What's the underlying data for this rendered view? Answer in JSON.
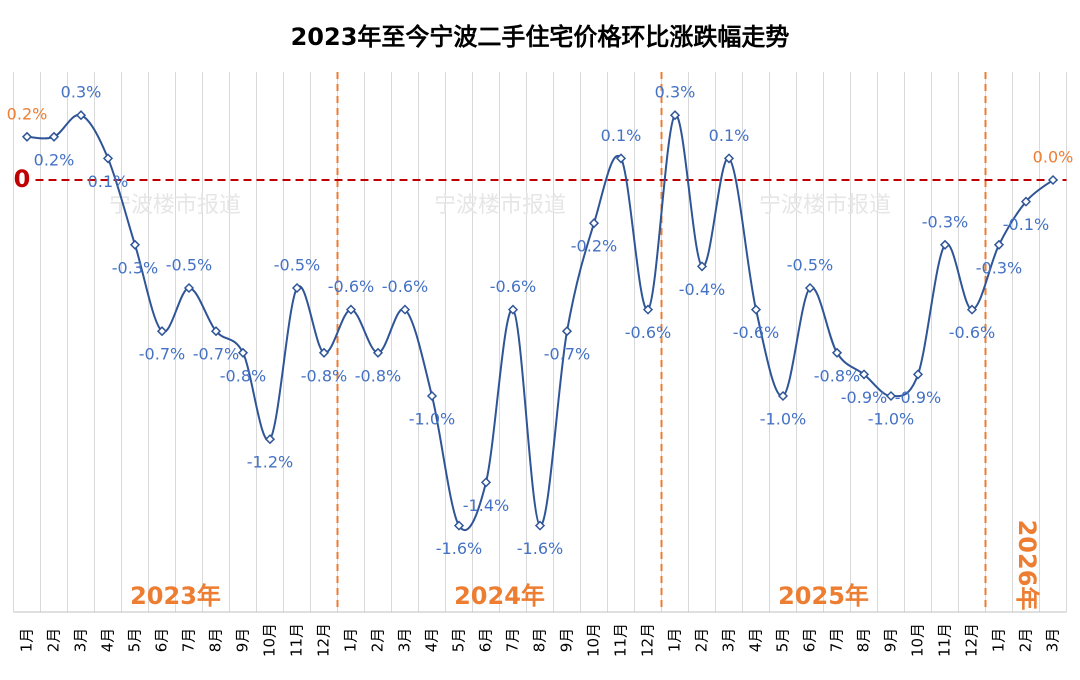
{
  "chart_data": {
    "type": "line",
    "title": "2023年至今宁波二手住宅价格环比涨跌幅走势",
    "categories": [
      "1月",
      "2月",
      "3月",
      "4月",
      "5月",
      "6月",
      "7月",
      "8月",
      "9月",
      "10月",
      "11月",
      "12月",
      "1月",
      "2月",
      "3月",
      "4月",
      "5月",
      "6月",
      "7月",
      "8月",
      "9月",
      "10月",
      "11月",
      "12月",
      "1月",
      "2月",
      "3月",
      "4月",
      "5月",
      "6月",
      "7月",
      "8月",
      "9月",
      "10月",
      "11月",
      "12月",
      "1月",
      "2月",
      "3月"
    ],
    "series": [
      {
        "name": "环比涨跌幅",
        "color": "#2f5597",
        "values": [
          0.2,
          0.2,
          0.3,
          0.1,
          -0.3,
          -0.7,
          -0.5,
          -0.7,
          -0.8,
          -1.2,
          -0.5,
          -0.8,
          -0.6,
          -0.8,
          -0.6,
          -1.0,
          -1.6,
          -1.4,
          -0.6,
          -1.6,
          -0.7,
          -0.2,
          0.1,
          -0.6,
          0.3,
          -0.4,
          0.1,
          -0.6,
          -1.0,
          -0.5,
          -0.8,
          -0.9,
          -1.0,
          -0.9,
          -0.3,
          -0.6,
          -0.3,
          -0.1,
          0.0
        ],
        "value_labels": [
          "0.2%",
          "0.2%",
          "0.3%",
          "0.1%",
          "-0.3%",
          "-0.7%",
          "-0.5%",
          "-0.7%",
          "-0.8%",
          "-1.2%",
          "-0.5%",
          "-0.8%",
          "-0.6%",
          "-0.8%",
          "-0.6%",
          "-1.0%",
          "-1.6%",
          "-1.4%",
          "-0.6%",
          "-1.6%",
          "-0.7%",
          "-0.2%",
          "0.1%",
          "-0.6%",
          "0.3%",
          "-0.4%",
          "0.1%",
          "-0.6%",
          "-1.0%",
          "-0.5%",
          "-0.8%",
          "-0.9%",
          "-1.0%",
          "-0.9%",
          "-0.3%",
          "-0.6%",
          "-0.3%",
          "-0.1%",
          "0.0%"
        ]
      }
    ],
    "ylim": [
      -2.0,
      0.5
    ],
    "yticks": [
      0
    ],
    "annotations": [
      "2023年",
      "2024年",
      "2025年",
      "2026年"
    ],
    "watermark": "宁波楼市报道",
    "grid": true
  }
}
